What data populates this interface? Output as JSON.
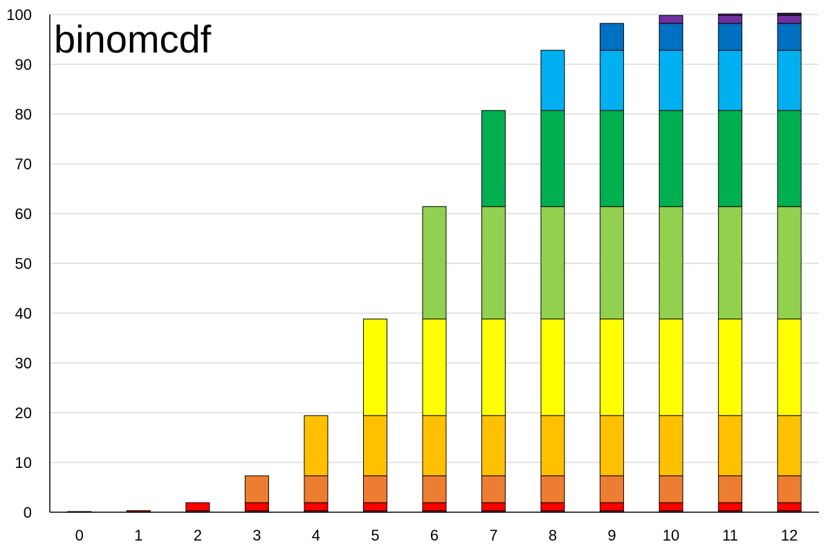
{
  "chart_data": {
    "type": "bar",
    "stacked": true,
    "title": "binomcdf",
    "xlabel": "",
    "ylabel": "",
    "categories": [
      "0",
      "1",
      "2",
      "3",
      "4",
      "5",
      "6",
      "7",
      "8",
      "9",
      "10",
      "11",
      "12"
    ],
    "ylim": [
      0,
      100
    ],
    "yticks": [
      0,
      10,
      20,
      30,
      40,
      50,
      60,
      70,
      80,
      90,
      100
    ],
    "grid": true,
    "legend": "none",
    "series": [
      {
        "color": "#000000",
        "values": [
          0.02,
          0.02,
          0.02,
          0.02,
          0.02,
          0.02,
          0.02,
          0.02,
          0.02,
          0.02,
          0.02,
          0.02,
          0.02
        ]
      },
      {
        "color": "#c00000",
        "values": [
          0,
          0.3,
          0.3,
          0.3,
          0.3,
          0.3,
          0.3,
          0.3,
          0.3,
          0.3,
          0.3,
          0.3,
          0.3
        ]
      },
      {
        "color": "#ff0000",
        "values": [
          0,
          0,
          1.6,
          1.6,
          1.6,
          1.6,
          1.6,
          1.6,
          1.6,
          1.6,
          1.6,
          1.6,
          1.6
        ]
      },
      {
        "color": "#ed7d31",
        "values": [
          0,
          0,
          0,
          5.4,
          5.4,
          5.4,
          5.4,
          5.4,
          5.4,
          5.4,
          5.4,
          5.4,
          5.4
        ]
      },
      {
        "color": "#ffc000",
        "values": [
          0,
          0,
          0,
          0,
          12.1,
          12.1,
          12.1,
          12.1,
          12.1,
          12.1,
          12.1,
          12.1,
          12.1
        ]
      },
      {
        "color": "#ffff00",
        "values": [
          0,
          0,
          0,
          0,
          0,
          19.4,
          19.4,
          19.4,
          19.4,
          19.4,
          19.4,
          19.4,
          19.4
        ]
      },
      {
        "color": "#92d050",
        "values": [
          0,
          0,
          0,
          0,
          0,
          0,
          22.6,
          22.6,
          22.6,
          22.6,
          22.6,
          22.6,
          22.6
        ]
      },
      {
        "color": "#00b050",
        "values": [
          0,
          0,
          0,
          0,
          0,
          0,
          0,
          19.3,
          19.3,
          19.3,
          19.3,
          19.3,
          19.3
        ]
      },
      {
        "color": "#00b0f0",
        "values": [
          0,
          0,
          0,
          0,
          0,
          0,
          0,
          0,
          12.1,
          12.1,
          12.1,
          12.1,
          12.1
        ]
      },
      {
        "color": "#0070c0",
        "values": [
          0,
          0,
          0,
          0,
          0,
          0,
          0,
          0,
          0,
          5.4,
          5.4,
          5.4,
          5.4
        ]
      },
      {
        "color": "#7030a0",
        "values": [
          0,
          0,
          0,
          0,
          0,
          0,
          0,
          0,
          0,
          0,
          1.6,
          1.6,
          1.6
        ]
      },
      {
        "color": "#5b2a86",
        "values": [
          0,
          0,
          0,
          0,
          0,
          0,
          0,
          0,
          0,
          0,
          0,
          0.3,
          0.3
        ]
      },
      {
        "color": "#000000",
        "values": [
          0,
          0,
          0,
          0,
          0,
          0,
          0,
          0,
          0,
          0,
          0,
          0,
          0.02
        ]
      }
    ]
  }
}
